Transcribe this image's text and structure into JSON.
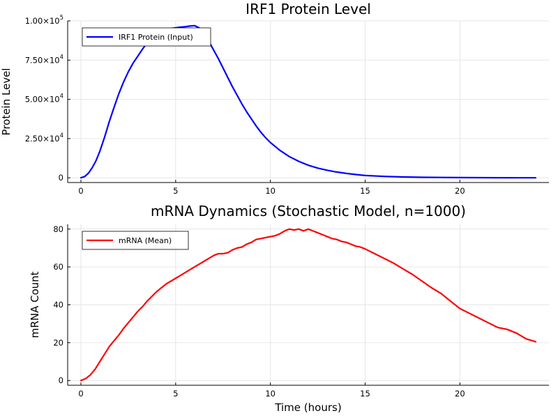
{
  "chart_data": [
    {
      "type": "line",
      "title": "IRF1 Protein Level",
      "xlabel": "",
      "ylabel": "Protein Level",
      "xlim": [
        -0.7,
        24.7
      ],
      "ylim": [
        -3000,
        100000
      ],
      "grid": true,
      "legend_position": "top-left",
      "x_ticks": [
        0,
        5,
        10,
        15,
        20
      ],
      "x_tick_labels": [
        "0",
        "5",
        "10",
        "15",
        "20"
      ],
      "y_ticks": [
        0,
        25000,
        50000,
        75000,
        100000
      ],
      "y_tick_labels": [
        {
          "mantissa": "0",
          "exp": ""
        },
        {
          "mantissa": "2.50×10",
          "exp": "4"
        },
        {
          "mantissa": "5.00×10",
          "exp": "4"
        },
        {
          "mantissa": "7.50×10",
          "exp": "4"
        },
        {
          "mantissa": "1.00×10",
          "exp": "5"
        }
      ],
      "series": [
        {
          "name": "IRF1 Protein (Input)",
          "color": "#0000ff",
          "x": [
            0,
            0.2,
            0.4,
            0.6,
            0.8,
            1,
            1.25,
            1.5,
            1.75,
            2,
            2.25,
            2.5,
            2.75,
            3,
            3.25,
            3.5,
            3.75,
            4,
            4.25,
            4.5,
            4.75,
            5,
            5.25,
            5.5,
            5.75,
            6,
            6.25,
            6.5,
            6.75,
            7,
            7.25,
            7.5,
            7.75,
            8,
            8.25,
            8.5,
            8.75,
            9,
            9.25,
            9.5,
            9.75,
            10,
            10.5,
            11,
            11.5,
            12,
            12.5,
            13,
            13.5,
            14,
            14.5,
            15,
            16,
            17,
            18,
            19,
            20,
            21,
            22,
            23,
            24
          ],
          "y": [
            0,
            800,
            3000,
            6500,
            11000,
            17000,
            26000,
            36000,
            45000,
            53500,
            61000,
            67500,
            73000,
            77500,
            82000,
            86000,
            89500,
            92000,
            93500,
            94500,
            95200,
            95600,
            96000,
            96300,
            96700,
            97000,
            95500,
            92000,
            87000,
            81500,
            76000,
            70000,
            64000,
            58000,
            52500,
            47000,
            42000,
            37500,
            33000,
            29000,
            25500,
            22500,
            17500,
            13500,
            10500,
            8000,
            6200,
            4800,
            3700,
            2800,
            2100,
            1500,
            900,
            550,
            350,
            220,
            140,
            90,
            60,
            40,
            25
          ]
        }
      ]
    },
    {
      "type": "line",
      "title": "mRNA Dynamics (Stochastic Model, n=1000)",
      "xlabel": "Time (hours)",
      "ylabel": "mRNA Count",
      "xlim": [
        -0.7,
        24.7
      ],
      "ylim": [
        -2.5,
        82.5
      ],
      "grid": true,
      "legend_position": "top-left",
      "x_ticks": [
        0,
        5,
        10,
        15,
        20
      ],
      "x_tick_labels": [
        "0",
        "5",
        "10",
        "15",
        "20"
      ],
      "y_ticks": [
        0,
        20,
        40,
        60,
        80
      ],
      "y_tick_labels": [
        {
          "mantissa": "0",
          "exp": ""
        },
        {
          "mantissa": "20",
          "exp": ""
        },
        {
          "mantissa": "40",
          "exp": ""
        },
        {
          "mantissa": "60",
          "exp": ""
        },
        {
          "mantissa": "80",
          "exp": ""
        }
      ],
      "series": [
        {
          "name": "mRNA (Mean)",
          "color": "#ff0000",
          "x": [
            0,
            0.25,
            0.5,
            0.75,
            1,
            1.25,
            1.5,
            1.75,
            2,
            2.25,
            2.5,
            2.75,
            3,
            3.25,
            3.5,
            3.75,
            4,
            4.25,
            4.5,
            4.75,
            5,
            5.25,
            5.5,
            5.75,
            6,
            6.25,
            6.5,
            6.75,
            7,
            7.25,
            7.5,
            7.75,
            8,
            8.25,
            8.5,
            8.75,
            9,
            9.25,
            9.5,
            9.75,
            10,
            10.25,
            10.5,
            10.75,
            11,
            11.25,
            11.5,
            11.75,
            12,
            12.25,
            12.5,
            12.75,
            13,
            13.25,
            13.5,
            13.75,
            14,
            14.25,
            14.5,
            14.75,
            15,
            15.5,
            16,
            16.5,
            17,
            17.5,
            18,
            18.5,
            19,
            19.5,
            20,
            20.5,
            21,
            21.5,
            22,
            22.5,
            23,
            23.5,
            24
          ],
          "y": [
            0,
            1,
            3,
            6,
            10,
            14,
            18,
            21,
            24,
            27.5,
            30.5,
            33.5,
            36.5,
            39,
            42,
            44.5,
            47,
            49,
            51,
            52.5,
            54,
            55.5,
            57,
            58.5,
            60,
            61.5,
            63,
            64.5,
            66,
            67,
            67,
            67.5,
            69,
            70,
            70.5,
            72,
            73,
            74.5,
            75,
            75.5,
            76,
            76.5,
            77.5,
            79,
            80,
            79.5,
            80,
            79,
            80,
            79,
            78,
            77,
            76,
            75,
            74.5,
            73.5,
            73,
            72,
            71,
            70.5,
            69.5,
            67,
            64.5,
            62,
            59,
            56,
            52.5,
            49,
            46,
            42,
            38,
            35.5,
            33,
            30.5,
            28,
            27,
            25,
            22,
            20.5
          ]
        }
      ]
    }
  ]
}
